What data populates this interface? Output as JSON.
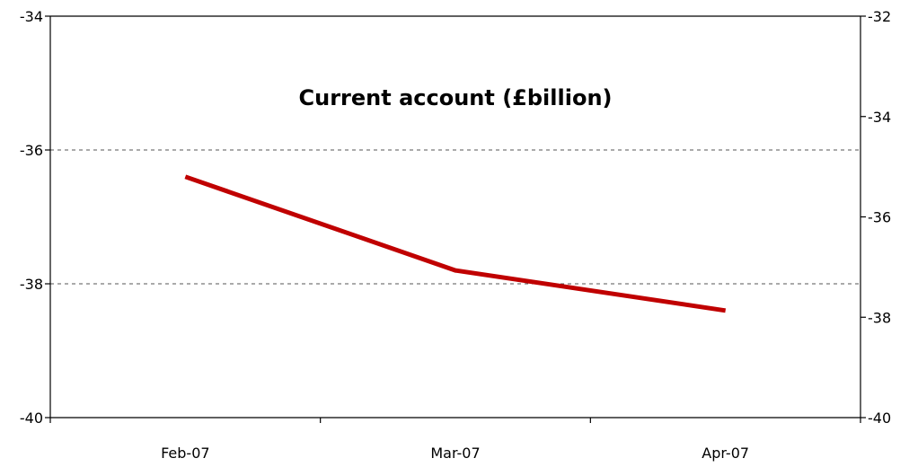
{
  "chart_data": {
    "type": "line",
    "title": "Current account (£billion)",
    "xlabel": "",
    "ylabel": "",
    "categories": [
      "Feb-07",
      "Mar-07",
      "Apr-07"
    ],
    "series": [
      {
        "values": [
          -36.4,
          -37.8,
          -38.4
        ],
        "color": "#c00000",
        "axis": "left"
      }
    ],
    "ylim_left": [
      -40,
      -34
    ],
    "yticks_left": [
      -40,
      -38,
      -36,
      -34
    ],
    "ytick_labels_left": [
      "-40",
      "-38",
      "-36",
      "-34"
    ],
    "ylim_right": [
      -40,
      -32
    ],
    "yticks_right": [
      -40,
      -38,
      -36,
      -34,
      -32
    ],
    "ytick_labels_right": [
      "-40",
      "-38",
      "-36",
      "-34",
      "-32"
    ],
    "gridlines": [
      -38,
      -36
    ],
    "grid": "dashed horizontal",
    "legend": "none"
  }
}
